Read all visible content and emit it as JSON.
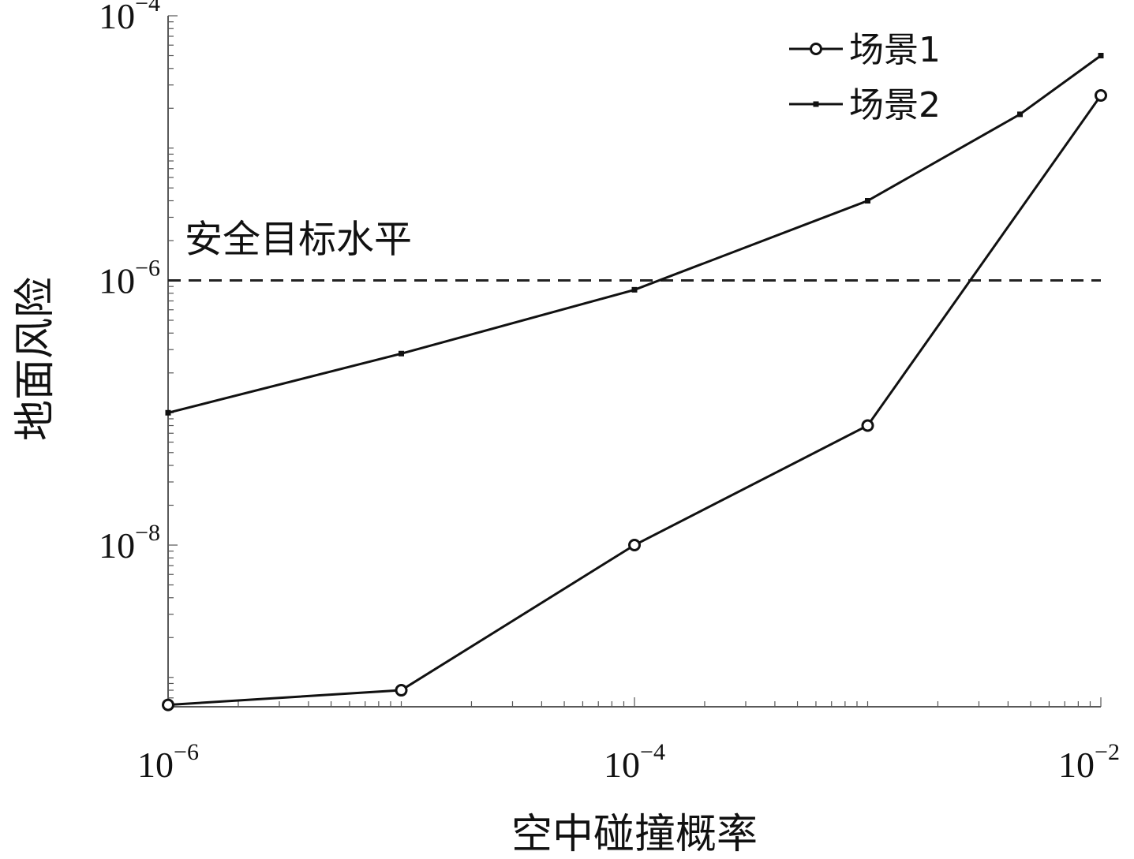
{
  "chart_data": {
    "type": "line",
    "x_scale": "log",
    "y_scale": "log",
    "xlim": [
      1e-06,
      0.01
    ],
    "ylim": [
      6e-10,
      0.0001
    ],
    "xlabel": "空中碰撞概率",
    "ylabel": "地面风险",
    "x_ticks": [
      {
        "base": "10",
        "exp": "−6",
        "value": 1e-06
      },
      {
        "base": "10",
        "exp": "−4",
        "value": 0.0001
      },
      {
        "base": "10",
        "exp": "−2",
        "value": 0.01
      }
    ],
    "y_ticks": [
      {
        "base": "10",
        "exp": "−4",
        "value": 0.0001
      },
      {
        "base": "10",
        "exp": "−6",
        "value": 1e-06
      },
      {
        "base": "10",
        "exp": "−8",
        "value": 1e-08
      }
    ],
    "series": [
      {
        "name": "场景1",
        "marker": "circle",
        "color": "#111111",
        "x": [
          1e-06,
          1e-05,
          0.0001,
          0.001,
          0.01
        ],
        "y": [
          6.2e-10,
          8e-10,
          1e-08,
          8e-08,
          2.5e-05
        ]
      },
      {
        "name": "场景2",
        "marker": "small-square",
        "color": "#111111",
        "x": [
          1e-06,
          1e-05,
          0.0001,
          0.001,
          0.0045,
          0.01
        ],
        "y": [
          1e-07,
          2.8e-07,
          8.5e-07,
          4e-06,
          1.8e-05,
          5e-05
        ]
      }
    ],
    "reference_line": {
      "label": "安全目标水平",
      "y": 1e-06,
      "style": "dashed"
    },
    "legend": {
      "placement": "top-right",
      "entries": [
        "场景1",
        "场景2"
      ]
    },
    "grid": false
  }
}
